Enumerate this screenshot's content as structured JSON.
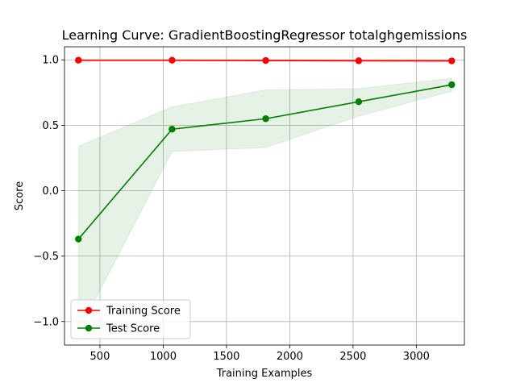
{
  "chart_data": {
    "type": "line",
    "title": "Learning Curve: GradientBoostingRegressor totalghgemissions",
    "xlabel": "Training Examples",
    "ylabel": "Score",
    "xlim": [
      220,
      3380
    ],
    "ylim": [
      -1.18,
      1.1
    ],
    "x_ticks": [
      500,
      1000,
      1500,
      2000,
      2500,
      3000
    ],
    "x_tick_labels": [
      "500",
      "1000",
      "1500",
      "2000",
      "2500",
      "3000"
    ],
    "y_ticks": [
      -1.0,
      -0.5,
      0.0,
      0.5,
      1.0
    ],
    "y_tick_labels": [
      "−1.0",
      "−0.5",
      "0.0",
      "0.5",
      "1.0"
    ],
    "grid": true,
    "legend_position": "lower-left",
    "x": [
      330,
      1070,
      1810,
      2545,
      3280
    ],
    "series": [
      {
        "name": "Training Score",
        "color": "#ff0000",
        "values": [
          0.997,
          0.997,
          0.995,
          0.993,
          0.992
        ],
        "band_lower": [
          0.99,
          0.99,
          0.99,
          0.985,
          0.985
        ],
        "band_upper": [
          1.0,
          1.0,
          1.0,
          1.0,
          0.998
        ]
      },
      {
        "name": "Test Score",
        "color": "#008000",
        "values": [
          -0.37,
          0.47,
          0.55,
          0.68,
          0.81
        ],
        "band_lower": [
          -1.08,
          0.3,
          0.33,
          0.57,
          0.76
        ],
        "band_upper": [
          0.34,
          0.64,
          0.77,
          0.78,
          0.86
        ],
        "band_color": "#008000"
      }
    ]
  }
}
